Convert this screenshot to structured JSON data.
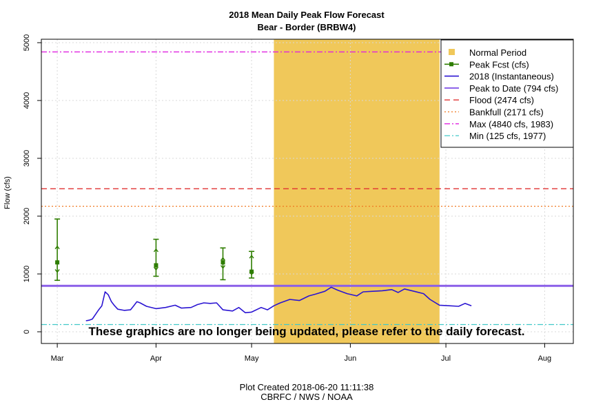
{
  "chart_data": {
    "type": "line",
    "title": "2018 Mean Daily Peak Flow Forecast",
    "subtitle": "Bear - Border (BRBW4)",
    "ylabel": "Flow (cfs)",
    "xlabel": "",
    "ylim": [
      0,
      5000
    ],
    "xlim": [
      "2018-02-24",
      "2018-08-10"
    ],
    "y_ticks": [
      0,
      1000,
      2000,
      3000,
      4000,
      5000
    ],
    "x_ticks": [
      {
        "date": "2018-03-01",
        "label": "Mar"
      },
      {
        "date": "2018-04-01",
        "label": "Apr"
      },
      {
        "date": "2018-05-01",
        "label": "May"
      },
      {
        "date": "2018-06-01",
        "label": "Jun"
      },
      {
        "date": "2018-07-01",
        "label": "Jul"
      },
      {
        "date": "2018-08-01",
        "label": "Aug"
      }
    ],
    "grid": true,
    "legend_position": "top-right",
    "normal_period": {
      "name": "Normal Period",
      "start": "2018-05-08",
      "end": "2018-06-29",
      "color": "#f0c85a"
    },
    "reference_lines": [
      {
        "name": "Peak to Date (794 cfs)",
        "value": 794,
        "color": "#8a5ee8",
        "style": "solid"
      },
      {
        "name": "Flood (2474 cfs)",
        "value": 2474,
        "color": "#e03030",
        "style": "dashed"
      },
      {
        "name": "Bankfull (2171 cfs)",
        "value": 2171,
        "color": "#f07820",
        "style": "dotted"
      },
      {
        "name": "Max (4840 cfs, 1983)",
        "value": 4840,
        "color": "#e020e0",
        "style": "dashdot"
      },
      {
        "name": "Min (125 cfs, 1977)",
        "value": 125,
        "color": "#40c8c8",
        "style": "dashdot"
      }
    ],
    "forecasts": {
      "name": "Peak Fcst (cfs)",
      "color": "#2e7d00",
      "points": [
        {
          "date": "2018-03-01",
          "value": 1200,
          "low": 890,
          "high": 1950,
          "low_inner": 1030,
          "high_inner": 1480
        },
        {
          "date": "2018-04-01",
          "value": 1150,
          "low": 960,
          "high": 1600,
          "low_inner": 1070,
          "high_inner": 1430
        },
        {
          "date": "2018-04-22",
          "value": 1200,
          "low": 900,
          "high": 1450,
          "low_inner": 1100,
          "high_inner": 1280
        },
        {
          "date": "2018-05-01",
          "value": 1040,
          "low": 930,
          "high": 1390,
          "low_inner": 990,
          "high_inner": 1320
        }
      ]
    },
    "series": [
      {
        "name": "2018  (Instantaneous)",
        "color": "#2a14d2",
        "points": [
          [
            "2018-03-10",
            190
          ],
          [
            "2018-03-11",
            200
          ],
          [
            "2018-03-12",
            220
          ],
          [
            "2018-03-13",
            300
          ],
          [
            "2018-03-14",
            380
          ],
          [
            "2018-03-15",
            450
          ],
          [
            "2018-03-16",
            690
          ],
          [
            "2018-03-17",
            640
          ],
          [
            "2018-03-18",
            520
          ],
          [
            "2018-03-19",
            450
          ],
          [
            "2018-03-20",
            390
          ],
          [
            "2018-03-22",
            370
          ],
          [
            "2018-03-24",
            380
          ],
          [
            "2018-03-25",
            450
          ],
          [
            "2018-03-26",
            520
          ],
          [
            "2018-03-27",
            500
          ],
          [
            "2018-03-29",
            440
          ],
          [
            "2018-04-01",
            400
          ],
          [
            "2018-04-04",
            420
          ],
          [
            "2018-04-07",
            460
          ],
          [
            "2018-04-09",
            410
          ],
          [
            "2018-04-12",
            420
          ],
          [
            "2018-04-14",
            470
          ],
          [
            "2018-04-16",
            500
          ],
          [
            "2018-04-18",
            490
          ],
          [
            "2018-04-20",
            500
          ],
          [
            "2018-04-22",
            380
          ],
          [
            "2018-04-25",
            360
          ],
          [
            "2018-04-27",
            420
          ],
          [
            "2018-04-29",
            330
          ],
          [
            "2018-05-01",
            340
          ],
          [
            "2018-05-04",
            420
          ],
          [
            "2018-05-06",
            380
          ],
          [
            "2018-05-08",
            450
          ],
          [
            "2018-05-10",
            500
          ],
          [
            "2018-05-13",
            560
          ],
          [
            "2018-05-16",
            540
          ],
          [
            "2018-05-19",
            620
          ],
          [
            "2018-05-21",
            650
          ],
          [
            "2018-05-24",
            700
          ],
          [
            "2018-05-26",
            770
          ],
          [
            "2018-05-28",
            720
          ],
          [
            "2018-05-31",
            660
          ],
          [
            "2018-06-03",
            620
          ],
          [
            "2018-06-05",
            690
          ],
          [
            "2018-06-08",
            700
          ],
          [
            "2018-06-11",
            710
          ],
          [
            "2018-06-14",
            730
          ],
          [
            "2018-06-16",
            680
          ],
          [
            "2018-06-18",
            740
          ],
          [
            "2018-06-21",
            700
          ],
          [
            "2018-06-24",
            660
          ],
          [
            "2018-06-26",
            560
          ],
          [
            "2018-06-29",
            460
          ],
          [
            "2018-07-02",
            450
          ],
          [
            "2018-07-05",
            440
          ],
          [
            "2018-07-07",
            490
          ],
          [
            "2018-07-09",
            450
          ]
        ]
      }
    ],
    "legend": [
      "Normal Period",
      "Peak Fcst (cfs)",
      "2018  (Instantaneous)",
      "Peak to Date (794 cfs)",
      "Flood (2474 cfs)",
      "Bankfull (2171 cfs)",
      "Max (4840 cfs, 1983)",
      "Min (125 cfs, 1977)"
    ],
    "annotations": [
      "These graphics are no longer being updated, please refer to the daily forecast."
    ]
  },
  "footer": {
    "created": "Plot Created 2018-06-20 11:11:38",
    "credit": "CBRFC / NWS / NOAA"
  }
}
